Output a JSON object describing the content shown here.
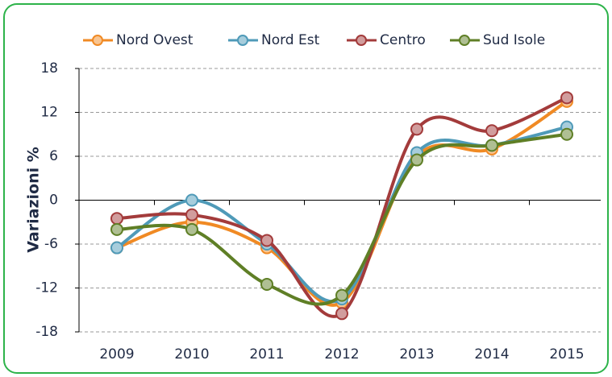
{
  "chart_data": {
    "type": "line",
    "categories": [
      "2009",
      "2010",
      "2011",
      "2012",
      "2013",
      "2014",
      "2015"
    ],
    "series": [
      {
        "name": "Nord Ovest",
        "color": "#f08a24",
        "values": [
          -6.5,
          -3,
          -6.5,
          -14,
          6,
          7,
          13.5
        ]
      },
      {
        "name": "Nord Est",
        "color": "#4f9ab8",
        "values": [
          -6.5,
          0,
          -6,
          -13.5,
          6.5,
          7.5,
          10
        ]
      },
      {
        "name": "Centro",
        "color": "#a33b3b",
        "values": [
          -2.5,
          -2,
          -5.5,
          -15.5,
          9.7,
          9.5,
          14
        ]
      },
      {
        "name": "Sud Isole",
        "color": "#5f7f26",
        "values": [
          -4,
          -4,
          -11.5,
          -13,
          5.5,
          7.5,
          9
        ]
      }
    ],
    "y_label": "Variazioni %",
    "ylim": [
      -18,
      18
    ],
    "yticks": [
      -18,
      -12,
      -6,
      0,
      6,
      12,
      18
    ],
    "grid": true,
    "legend": "top"
  }
}
